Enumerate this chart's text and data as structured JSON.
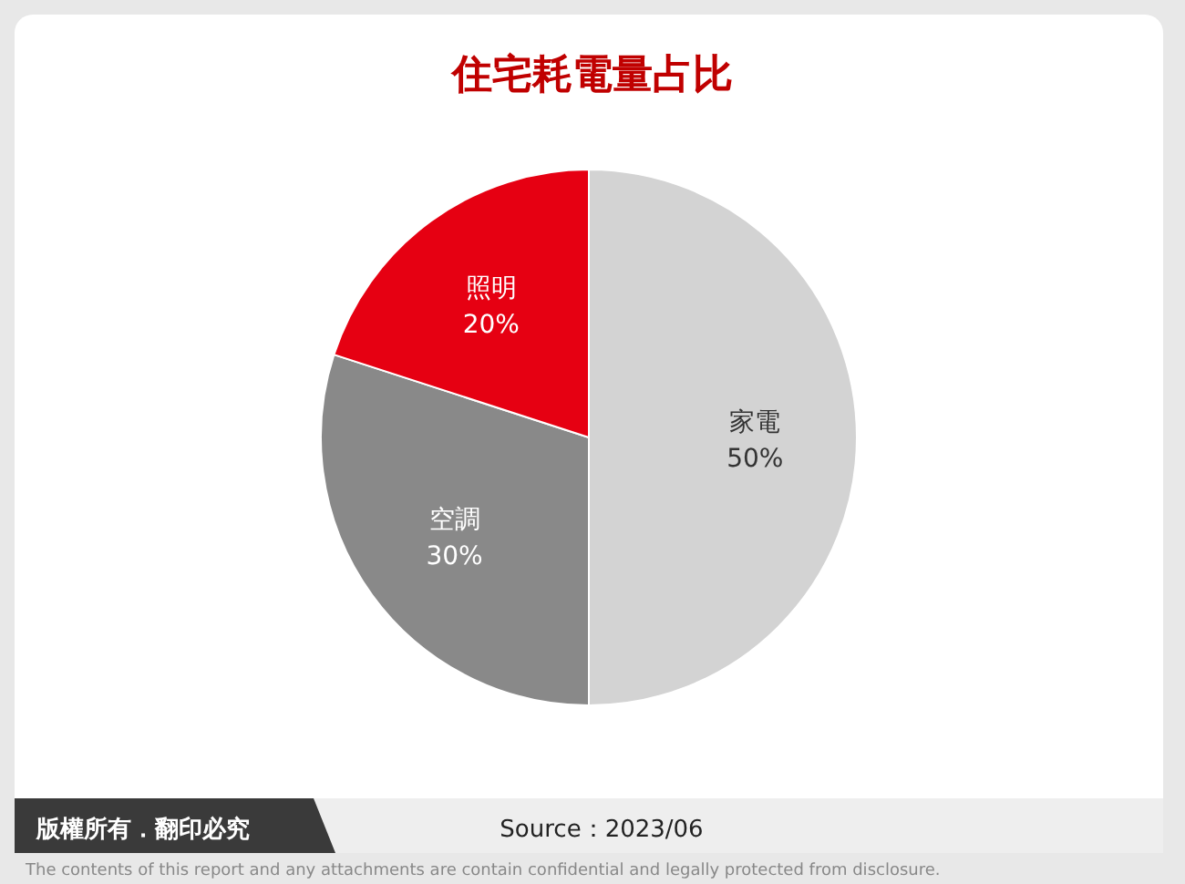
{
  "chart_data": {
    "type": "pie",
    "title": "住宅耗電量占比",
    "categories": [
      "家電",
      "空調",
      "照明"
    ],
    "values": [
      50,
      30,
      20
    ],
    "value_labels": [
      "50%",
      "30%",
      "20%"
    ],
    "colors": [
      "#d3d3d3",
      "#898989",
      "#e60012"
    ],
    "annotations": [
      "版權所有．翻印必究",
      "Source：2023/06",
      "The contents of this report and any attachments are contain confidential and legally protected from disclosure."
    ]
  }
}
